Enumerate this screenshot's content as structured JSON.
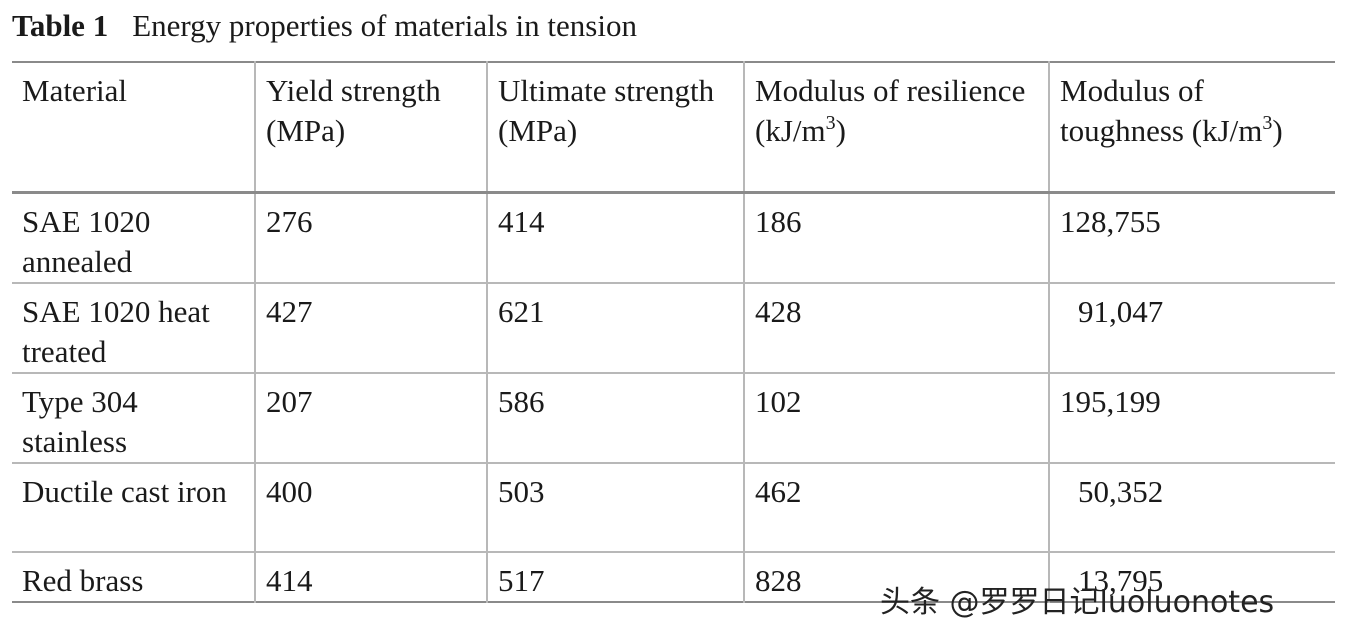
{
  "caption": {
    "label": "Table 1",
    "text": "Energy properties of materials in tension"
  },
  "table": {
    "headers": {
      "material": "Material",
      "yield": "Yield strength (MPa)",
      "ultimate": "Ultimate strength (MPa)",
      "resilience": "Modulus of resilience (kJ/m",
      "resilience_sup": "3",
      "resilience_close": ")",
      "toughness": "Modulus of toughness (kJ/m",
      "toughness_sup": "3",
      "toughness_close": ")"
    },
    "rows": [
      {
        "material": "SAE 1020 annealed",
        "yield": "276",
        "ultimate": "414",
        "resilience": "186",
        "toughness": "128,755"
      },
      {
        "material": "SAE 1020 heat treated",
        "yield": "427",
        "ultimate": "621",
        "resilience": "428",
        "toughness": "91,047"
      },
      {
        "material": "Type 304 stainless",
        "yield": "207",
        "ultimate": "586",
        "resilience": "102",
        "toughness": "195,199"
      },
      {
        "material": "Ductile cast iron",
        "yield": "400",
        "ultimate": "503",
        "resilience": "462",
        "toughness": "50,352"
      },
      {
        "material": "Red brass",
        "yield": "414",
        "ultimate": "517",
        "resilience": "828",
        "toughness": "13,795"
      }
    ]
  },
  "watermark": "头条 @罗罗日记luoluonotes"
}
